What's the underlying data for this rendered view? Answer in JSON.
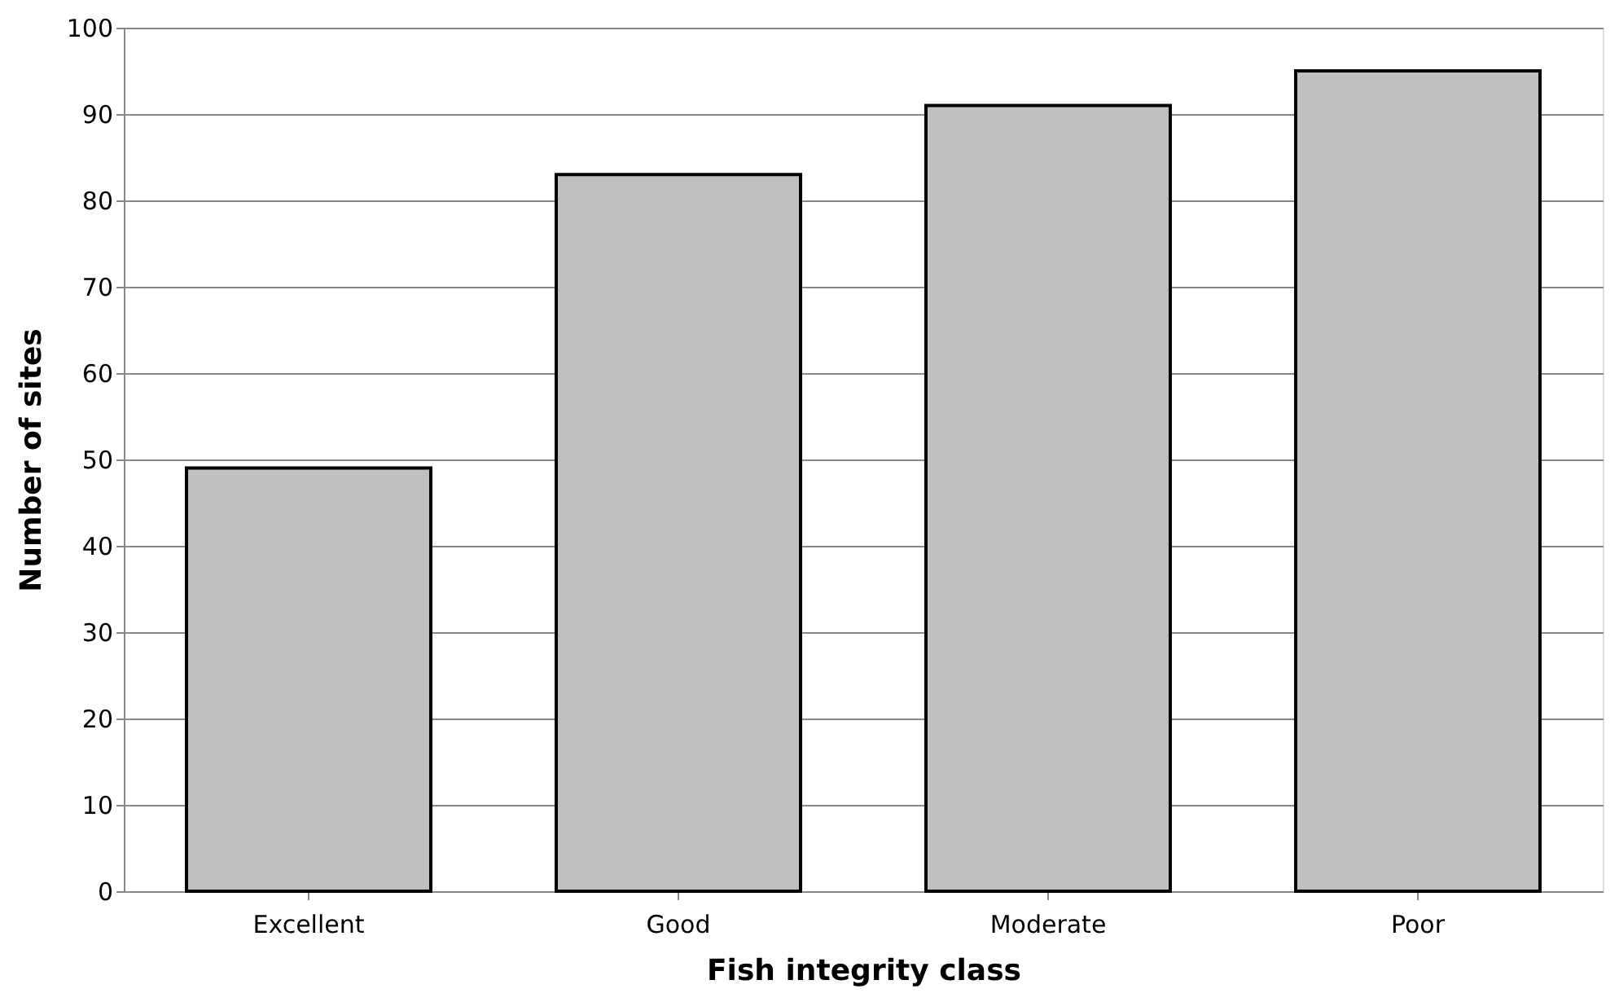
{
  "chart_data": {
    "type": "bar",
    "xlabel": "Fish integrity class",
    "ylabel": "Number  of sites",
    "categories": [
      "Excellent",
      "Good",
      "Moderate",
      "Poor"
    ],
    "series": [
      {
        "color": "#c0c0c0",
        "values": [
          49,
          83,
          91,
          95
        ]
      }
    ],
    "ylim": [
      0,
      100
    ],
    "yticks": [
      0,
      10,
      20,
      30,
      40,
      50,
      60,
      70,
      80,
      90,
      100
    ],
    "grid": "y"
  }
}
